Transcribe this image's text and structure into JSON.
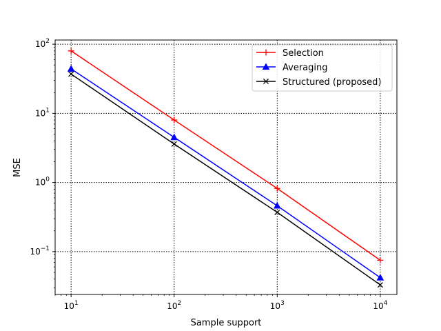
{
  "chart_data": {
    "type": "line",
    "x_scale": "log",
    "y_scale": "log",
    "x": [
      10,
      100,
      1000,
      10000
    ],
    "xlim": [
      7,
      14500
    ],
    "ylim": [
      0.024,
      115
    ],
    "x_ticks": [
      {
        "value": 10,
        "base": "10",
        "exp": "1"
      },
      {
        "value": 100,
        "base": "10",
        "exp": "2"
      },
      {
        "value": 1000,
        "base": "10",
        "exp": "3"
      },
      {
        "value": 10000,
        "base": "10",
        "exp": "4"
      }
    ],
    "y_ticks": [
      {
        "value": 0.1,
        "base": "10",
        "exp": "−1"
      },
      {
        "value": 1,
        "base": "10",
        "exp": "0"
      },
      {
        "value": 10,
        "base": "10",
        "exp": "1"
      },
      {
        "value": 100,
        "base": "10",
        "exp": "2"
      }
    ],
    "xlabel": "Sample support",
    "ylabel": "MSE",
    "grid": true,
    "legend_position": "top-right",
    "series": [
      {
        "name": "Selection",
        "color": "#ff0000",
        "marker": "plus",
        "values": [
          80,
          8,
          0.82,
          0.075
        ]
      },
      {
        "name": "Averaging",
        "color": "#0000ff",
        "marker": "triangle",
        "values": [
          44,
          4.5,
          0.46,
          0.042
        ]
      },
      {
        "name": "Structured (proposed)",
        "color": "#000000",
        "marker": "x",
        "values": [
          37,
          3.6,
          0.37,
          0.033
        ]
      }
    ]
  }
}
